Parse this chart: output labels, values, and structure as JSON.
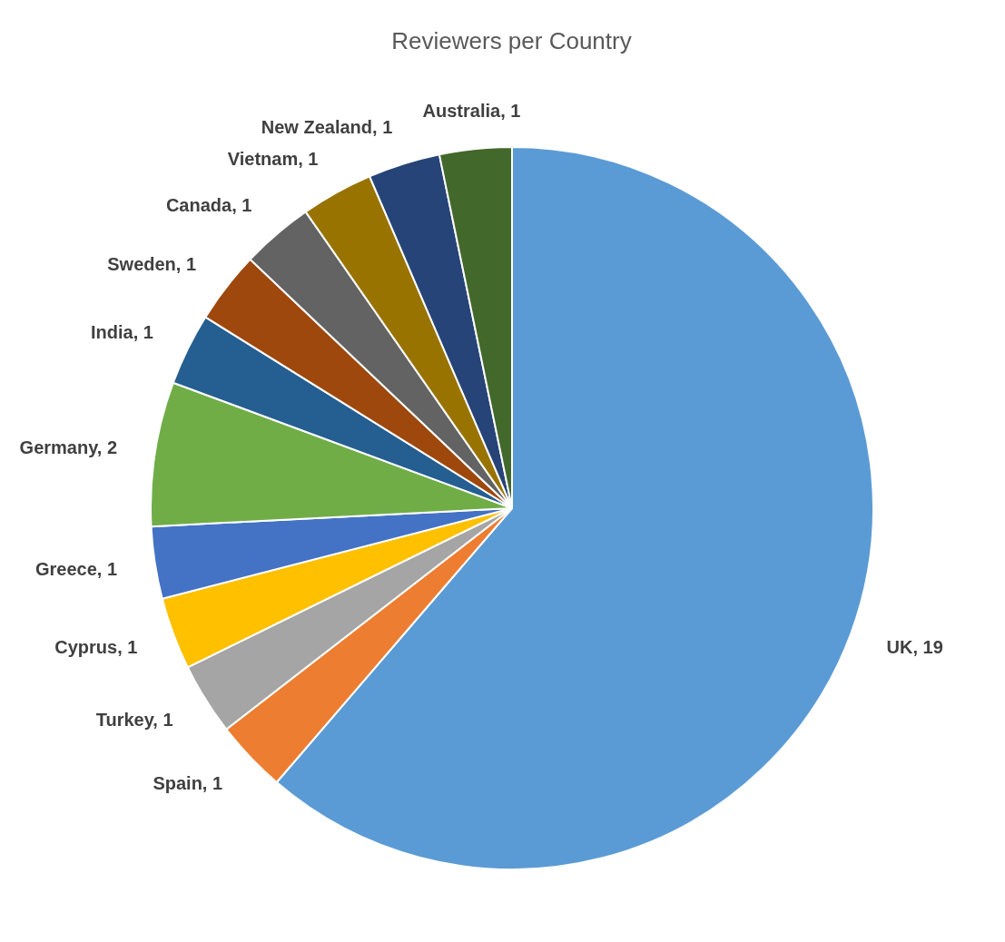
{
  "chart_data": {
    "type": "pie",
    "title": "Reviewers per Country",
    "categories": [
      "UK",
      "Spain",
      "Turkey",
      "Cyprus",
      "Greece",
      "Germany",
      "India",
      "Sweden",
      "Canada",
      "Vietnam",
      "New Zealand",
      "Australia"
    ],
    "values": [
      19,
      1,
      1,
      1,
      1,
      2,
      1,
      1,
      1,
      1,
      1,
      1
    ],
    "value_labels": [
      ", 19",
      ", 1",
      ", 1",
      ", 1",
      ", 1",
      ", 2",
      ", 1",
      ", 1",
      ", 1",
      ", 1",
      ", 1",
      ", 1"
    ],
    "colors": [
      "#5b9bd5",
      "#ed7d31",
      "#a5a5a5",
      "#ffc000",
      "#4472c4",
      "#70ad47",
      "#255e91",
      "#9e480e",
      "#636363",
      "#997300",
      "#264478",
      "#43682b"
    ],
    "legend": false
  }
}
